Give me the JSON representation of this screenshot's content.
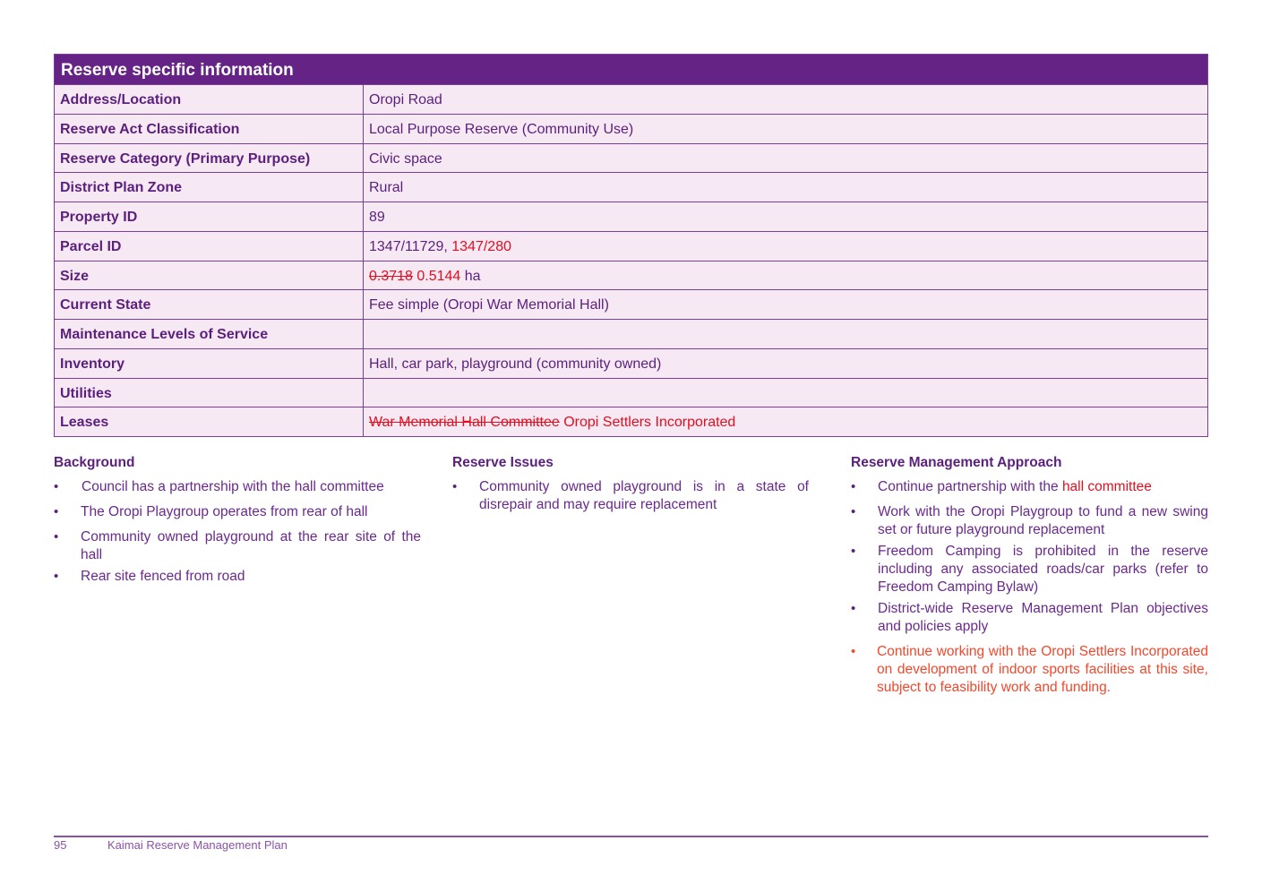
{
  "table": {
    "title": "Reserve specific information",
    "rows": [
      {
        "label": "Address/Location",
        "value": "Oropi Road"
      },
      {
        "label": "Reserve Act Classification",
        "value": "Local Purpose Reserve (Community Use)"
      },
      {
        "label": "Reserve Category (Primary Purpose)",
        "value": "Civic space"
      },
      {
        "label": "District Plan Zone",
        "value": "Rural"
      },
      {
        "label": "Property ID",
        "value": "89"
      },
      {
        "label": "Parcel ID",
        "value": "1347/11729,",
        "added": "1347/280"
      },
      {
        "label": "Size",
        "struck": "0.3718",
        "added": "0.5144",
        "unit": "ha"
      },
      {
        "label": "Current State",
        "value": "Fee simple (Oropi War Memorial Hall)"
      },
      {
        "label": "Maintenance Levels of Service",
        "value": ""
      },
      {
        "label": "Inventory",
        "value": "Hall, car park, playground (community owned)"
      },
      {
        "label": "Utilities",
        "value": ""
      },
      {
        "label": "Leases",
        "struck": "War Memorial Hall Committee",
        "added": "Oropi Settlers Incorporated"
      }
    ]
  },
  "background": {
    "heading": "Background",
    "items": [
      "Council has a partnership with the hall committee",
      "The Oropi Playgroup operates from rear of hall",
      "Community owned playground at the rear site of the hall",
      "Rear site fenced from road"
    ]
  },
  "issues": {
    "heading": "Reserve Issues",
    "items": [
      "Community owned playground is in a state of disrepair and may require replacement"
    ]
  },
  "approach": {
    "heading": "Reserve Management Approach",
    "item1_text": "Continue partnership with the",
    "item1_added": "hall committee",
    "items": [
      "Work with the Oropi Playgroup to fund a new swing set or future playground replacement",
      "Freedom Camping is prohibited in the reserve including any associated roads/car parks (refer to Freedom Camping Bylaw)",
      "District-wide Reserve Management Plan objectives and policies apply"
    ],
    "added_item": "Continue working with the Oropi Settlers Incorporated on development of indoor sports facilities at this site, subject to feasibility work and funding."
  },
  "footer": {
    "page_number": "95",
    "title": "Kaimai Reserve Management Plan"
  },
  "colors": {
    "header_bg": "#652385",
    "row_bg": "#f6e9f4",
    "text": "#5b1f7c",
    "insert_red": "#e10f1f",
    "insert_orange": "#f0492e"
  }
}
